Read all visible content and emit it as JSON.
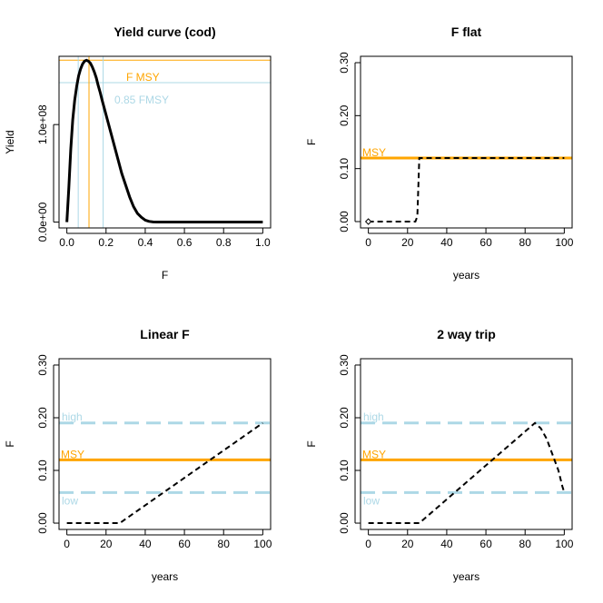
{
  "chart_data": [
    {
      "type": "line",
      "title": "Yield curve (cod)",
      "xlabel": "F",
      "ylabel": "Yield",
      "xlim": [
        0,
        1.0
      ],
      "ylim": [
        0,
        165000000
      ],
      "xticks": [
        "0.0",
        "0.2",
        "0.4",
        "0.6",
        "0.8",
        "1.0"
      ],
      "yticks": [
        "0.0e+00",
        "1.0e+08"
      ],
      "series": [
        {
          "x": [
            0,
            0.01,
            0.02,
            0.03,
            0.04,
            0.05,
            0.06,
            0.07,
            0.08,
            0.09,
            0.1,
            0.11,
            0.12,
            0.13,
            0.14,
            0.15,
            0.16,
            0.17,
            0.18,
            0.2,
            0.22,
            0.24,
            0.26,
            0.28,
            0.3,
            0.32,
            0.34,
            0.36,
            0.38,
            0.4,
            0.42,
            0.44,
            0.46,
            0.48,
            0.5,
            0.6,
            0.7,
            0.8,
            0.9,
            1.0
          ],
          "y": [
            0,
            35000000,
            75000000,
            105000000,
            125000000,
            139000000,
            150000000,
            157000000,
            162000000,
            165000000,
            166000000,
            165000000,
            163000000,
            159000000,
            154000000,
            148000000,
            140000000,
            133000000,
            125000000,
            110000000,
            95000000,
            80000000,
            65000000,
            50000000,
            38000000,
            26000000,
            16000000,
            9000000,
            5000000,
            2000000,
            700000,
            200000,
            50000,
            0,
            0,
            0,
            0,
            0,
            0,
            0
          ]
        }
      ],
      "annotations": [
        {
          "label": "F MSY",
          "color": "#FFA500"
        },
        {
          "label": "0.85 FMSY",
          "color": "#ADD8E6"
        }
      ],
      "vlines": [
        0.058,
        0.113,
        0.185
      ],
      "hlines": [
        166000000,
        143000000
      ]
    },
    {
      "type": "line",
      "title": "F flat",
      "xlabel": "years",
      "ylabel": "F",
      "xlim": [
        0,
        100
      ],
      "ylim": [
        0,
        0.3
      ],
      "xticks": [
        "0",
        "20",
        "40",
        "60",
        "80",
        "100"
      ],
      "yticks": [
        "0.00",
        "0.10",
        "0.20",
        "0.30"
      ],
      "hline_label": "MSY",
      "msy": 0.12,
      "series": [
        {
          "x": [
            0,
            24,
            25,
            26,
            100
          ],
          "y": [
            0,
            0,
            0.01,
            0.12,
            0.12
          ]
        }
      ],
      "start_marker": [
        0,
        0
      ]
    },
    {
      "type": "line",
      "title": "Linear F",
      "xlabel": "years",
      "ylabel": "F",
      "xlim": [
        0,
        100
      ],
      "ylim": [
        0,
        0.3
      ],
      "xticks": [
        "0",
        "20",
        "40",
        "60",
        "80",
        "100"
      ],
      "yticks": [
        "0.00",
        "0.10",
        "0.20",
        "0.30"
      ],
      "msy": 0.12,
      "high": 0.19,
      "low": 0.058,
      "labels": {
        "msy": "MSY",
        "high": "high",
        "low": "low"
      },
      "series": [
        {
          "x": [
            0,
            27,
            100
          ],
          "y": [
            0,
            0,
            0.19
          ]
        }
      ]
    },
    {
      "type": "line",
      "title": "2 way trip",
      "xlabel": "years",
      "ylabel": "F",
      "xlim": [
        0,
        100
      ],
      "ylim": [
        0,
        0.3
      ],
      "xticks": [
        "0",
        "20",
        "40",
        "60",
        "80",
        "100"
      ],
      "yticks": [
        "0.00",
        "0.10",
        "0.20",
        "0.30"
      ],
      "msy": 0.12,
      "high": 0.19,
      "low": 0.058,
      "labels": {
        "msy": "MSY",
        "high": "high",
        "low": "low"
      },
      "series": [
        {
          "x": [
            0,
            26,
            85,
            88,
            91,
            94,
            97,
            99,
            100
          ],
          "y": [
            0,
            0,
            0.19,
            0.18,
            0.16,
            0.13,
            0.1,
            0.07,
            0.058
          ]
        }
      ]
    }
  ],
  "colors": {
    "msy": "#FFA500",
    "ref": "#ADD8E6",
    "line": "#000000"
  }
}
